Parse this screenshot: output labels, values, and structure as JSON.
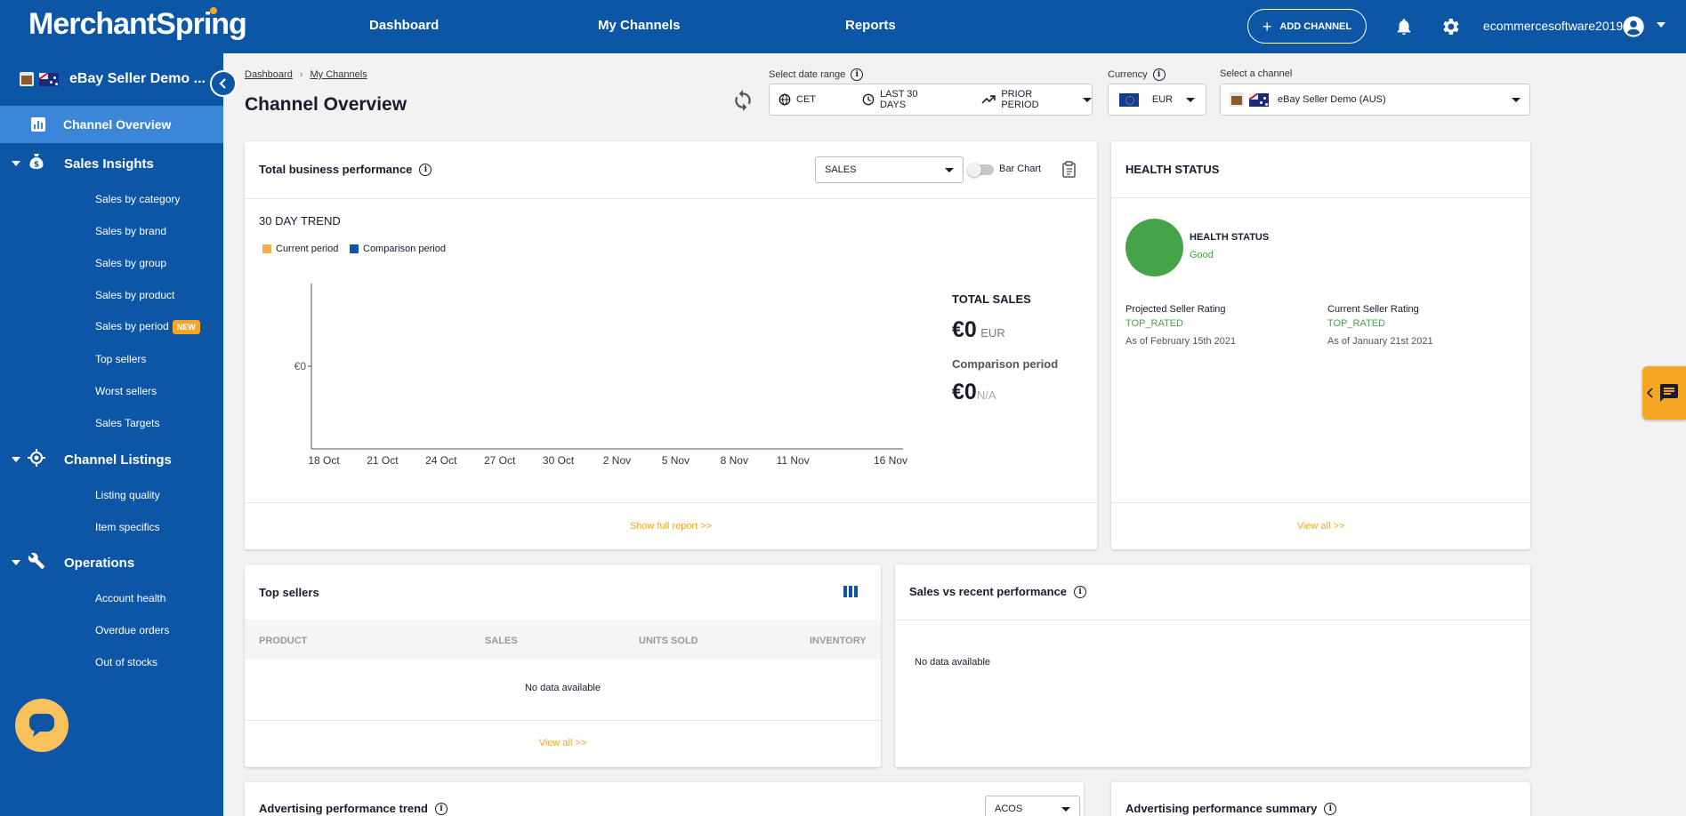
{
  "topbar": {
    "logo": "MerchantSpring",
    "nav": [
      "Dashboard",
      "My Channels",
      "Reports"
    ],
    "add_channel": "ADD CHANNEL",
    "username": "ecommercesoftware2019",
    "brand_color": "#0d55a5",
    "accent_color": "#f5a623",
    "icons": [
      "bell-icon",
      "gear-icon",
      "account-circle-icon"
    ]
  },
  "sidebar": {
    "channel_name": "eBay Seller Demo ...",
    "active_item": "Channel Overview",
    "sections": [
      {
        "label": "Sales Insights",
        "icon": "money-bag-icon",
        "items": [
          "Sales by category",
          "Sales by brand",
          "Sales by group",
          "Sales by product",
          "Sales by period",
          "Top sellers",
          "Worst sellers",
          "Sales Targets"
        ],
        "badge": "NEW"
      },
      {
        "label": "Channel Listings",
        "icon": "target-icon",
        "items": [
          "Listing quality",
          "Item specifics"
        ]
      },
      {
        "label": "Operations",
        "icon": "wrench-icon",
        "items": [
          "Account health",
          "Overdue orders",
          "Out of stocks"
        ]
      }
    ]
  },
  "header": {
    "breadcrumb": [
      "Dashboard",
      "My Channels"
    ],
    "title": "Channel Overview",
    "date_range": {
      "label": "Select date range",
      "timezone": "CET",
      "range": "LAST 30 DAYS",
      "compare": "PRIOR PERIOD"
    },
    "currency": {
      "label": "Currency",
      "value": "EUR"
    },
    "channel": {
      "label": "Select a channel",
      "value": "eBay Seller Demo (AUS)"
    }
  },
  "performance": {
    "title": "Total business performance",
    "metric_select": "SALES",
    "toggle_label": "Bar Chart",
    "trend_title": "30 DAY TREND",
    "legend": {
      "current": "Current period",
      "comparison": "Comparison period"
    },
    "total_label": "TOTAL SALES",
    "total_value": "€0",
    "total_currency": "EUR",
    "comparison_label": "Comparison period",
    "comparison_value": "€0",
    "comparison_note": "N/A",
    "link": "Show full report >>"
  },
  "chart_data": {
    "type": "line",
    "x": [
      "18 Oct",
      "21 Oct",
      "24 Oct",
      "27 Oct",
      "30 Oct",
      "2 Nov",
      "5 Nov",
      "8 Nov",
      "11 Nov",
      "16 Nov"
    ],
    "y_ticks": [
      "€0"
    ],
    "series": [
      {
        "name": "Current period",
        "color": "#f9ad4c",
        "values": [
          0,
          0,
          0,
          0,
          0,
          0,
          0,
          0,
          0,
          0
        ]
      },
      {
        "name": "Comparison period",
        "color": "#0d55a5",
        "values": [
          0,
          0,
          0,
          0,
          0,
          0,
          0,
          0,
          0,
          0
        ]
      }
    ]
  },
  "health": {
    "title": "HEALTH STATUS",
    "status_label": "HEALTH STATUS",
    "status_value": "Good",
    "status_color": "#45a349",
    "projected": {
      "label": "Projected Seller Rating",
      "value": "TOP_RATED",
      "date": "As of February 15th 2021"
    },
    "current": {
      "label": "Current Seller Rating",
      "value": "TOP_RATED",
      "date": "As of January 21st 2021"
    },
    "link": "View all >>"
  },
  "top_sellers": {
    "title": "Top sellers",
    "columns": [
      "PRODUCT",
      "SALES",
      "UNITS SOLD",
      "INVENTORY"
    ],
    "empty": "No data available",
    "link": "View all >>"
  },
  "sales_vs_recent": {
    "title": "Sales vs recent performance",
    "empty": "No data available"
  },
  "advertising_trend": {
    "title": "Advertising performance trend",
    "metric_select": "ACOS"
  },
  "advertising_summary": {
    "title": "Advertising performance summary"
  }
}
